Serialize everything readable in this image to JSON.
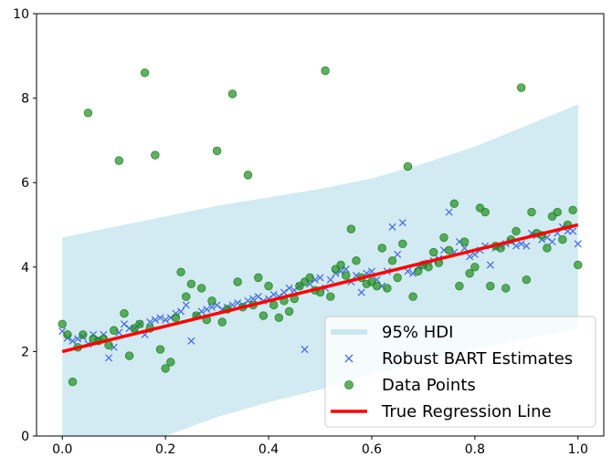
{
  "chart_data": {
    "type": "scatter",
    "xlim": [
      -0.05,
      1.05
    ],
    "ylim": [
      0,
      10
    ],
    "xticks": [
      "0.0",
      "0.2",
      "0.4",
      "0.6",
      "0.8",
      "1.0"
    ],
    "yticks": [
      "0",
      "2",
      "4",
      "6",
      "8",
      "10"
    ],
    "grid": false,
    "legend_position": "lower-right",
    "legend": {
      "hdi": "95% HDI",
      "estimates": "Robust BART Estimates",
      "data": "Data Points",
      "true_line": "True Regression Line"
    },
    "colors": {
      "hdi": "#add8e6",
      "estimates": "#4169e1",
      "data": "#228b22",
      "true_line": "#ff0000"
    },
    "hdi_band": {
      "x": [
        0.0,
        0.1,
        0.2,
        0.3,
        0.4,
        0.5,
        0.6,
        0.7,
        0.8,
        0.9,
        1.0
      ],
      "lower": [
        0.0,
        0.0,
        0.0,
        0.45,
        0.8,
        1.1,
        1.45,
        1.8,
        2.05,
        2.3,
        2.55
      ],
      "upper": [
        4.7,
        4.95,
        5.2,
        5.45,
        5.65,
        5.85,
        6.1,
        6.45,
        6.85,
        7.35,
        7.85
      ]
    },
    "true_line": {
      "x": [
        0.0,
        1.0
      ],
      "y": [
        2.0,
        5.0
      ]
    },
    "estimates": {
      "x": [
        0.0,
        0.01,
        0.02,
        0.03,
        0.04,
        0.05,
        0.06,
        0.07,
        0.08,
        0.09,
        0.1,
        0.11,
        0.12,
        0.13,
        0.14,
        0.15,
        0.16,
        0.17,
        0.18,
        0.19,
        0.2,
        0.21,
        0.22,
        0.23,
        0.24,
        0.25,
        0.26,
        0.27,
        0.28,
        0.29,
        0.3,
        0.31,
        0.32,
        0.33,
        0.34,
        0.35,
        0.36,
        0.37,
        0.38,
        0.39,
        0.4,
        0.41,
        0.42,
        0.43,
        0.44,
        0.45,
        0.46,
        0.47,
        0.48,
        0.49,
        0.5,
        0.51,
        0.52,
        0.53,
        0.54,
        0.55,
        0.56,
        0.57,
        0.58,
        0.59,
        0.6,
        0.61,
        0.62,
        0.63,
        0.64,
        0.65,
        0.66,
        0.67,
        0.68,
        0.69,
        0.7,
        0.71,
        0.72,
        0.73,
        0.74,
        0.75,
        0.76,
        0.77,
        0.78,
        0.79,
        0.8,
        0.81,
        0.82,
        0.83,
        0.84,
        0.85,
        0.86,
        0.87,
        0.88,
        0.89,
        0.9,
        0.91,
        0.92,
        0.93,
        0.94,
        0.95,
        0.96,
        0.97,
        0.98,
        0.99,
        1.0
      ],
      "y": [
        2.48,
        2.32,
        2.25,
        2.3,
        2.35,
        2.18,
        2.4,
        2.3,
        2.4,
        1.85,
        2.1,
        2.45,
        2.65,
        2.55,
        2.55,
        2.65,
        2.4,
        2.7,
        2.75,
        2.8,
        2.75,
        2.8,
        2.9,
        2.95,
        3.1,
        2.25,
        2.85,
        2.95,
        3.0,
        3.05,
        3.1,
        3.0,
        3.05,
        3.1,
        3.15,
        3.1,
        3.2,
        3.25,
        3.3,
        3.2,
        3.25,
        3.35,
        3.3,
        3.4,
        3.5,
        3.45,
        3.55,
        2.05,
        3.6,
        3.7,
        3.75,
        3.5,
        3.7,
        3.85,
        3.9,
        3.95,
        3.65,
        3.8,
        3.4,
        3.85,
        3.9,
        3.7,
        3.55,
        3.9,
        4.95,
        4.3,
        5.05,
        3.9,
        3.85,
        4.0,
        4.05,
        4.1,
        4.15,
        4.2,
        4.4,
        5.3,
        4.35,
        4.6,
        4.45,
        4.25,
        4.3,
        4.4,
        4.5,
        4.05,
        4.45,
        4.5,
        4.55,
        4.6,
        4.5,
        4.55,
        4.5,
        4.8,
        4.75,
        4.65,
        4.7,
        4.6,
        4.8,
        4.95,
        4.85,
        4.85,
        4.55
      ]
    },
    "data_points": {
      "x": [
        0.0,
        0.01,
        0.02,
        0.03,
        0.04,
        0.05,
        0.06,
        0.07,
        0.08,
        0.09,
        0.1,
        0.11,
        0.12,
        0.13,
        0.14,
        0.15,
        0.16,
        0.17,
        0.18,
        0.19,
        0.2,
        0.21,
        0.22,
        0.23,
        0.24,
        0.25,
        0.26,
        0.27,
        0.28,
        0.29,
        0.3,
        0.31,
        0.32,
        0.33,
        0.34,
        0.35,
        0.36,
        0.37,
        0.38,
        0.39,
        0.4,
        0.41,
        0.42,
        0.43,
        0.44,
        0.45,
        0.46,
        0.47,
        0.48,
        0.49,
        0.5,
        0.51,
        0.52,
        0.53,
        0.54,
        0.55,
        0.56,
        0.57,
        0.58,
        0.59,
        0.6,
        0.61,
        0.62,
        0.63,
        0.64,
        0.65,
        0.66,
        0.67,
        0.68,
        0.69,
        0.7,
        0.71,
        0.72,
        0.73,
        0.74,
        0.75,
        0.76,
        0.77,
        0.78,
        0.79,
        0.8,
        0.81,
        0.82,
        0.83,
        0.84,
        0.85,
        0.86,
        0.87,
        0.88,
        0.89,
        0.9,
        0.91,
        0.92,
        0.93,
        0.94,
        0.95,
        0.96,
        0.97,
        0.98,
        0.99,
        1.0
      ],
      "y": [
        2.65,
        2.4,
        1.28,
        2.1,
        2.4,
        7.65,
        2.3,
        2.25,
        2.3,
        2.15,
        2.5,
        6.52,
        2.9,
        1.9,
        2.55,
        2.65,
        8.6,
        2.55,
        6.65,
        2.05,
        1.6,
        1.75,
        2.8,
        3.88,
        3.3,
        3.6,
        2.85,
        3.5,
        2.75,
        3.2,
        6.75,
        2.7,
        3.0,
        8.1,
        3.65,
        3.05,
        6.18,
        3.1,
        3.75,
        2.85,
        3.55,
        3.1,
        2.8,
        3.2,
        2.95,
        3.25,
        3.55,
        3.65,
        3.75,
        3.45,
        3.4,
        8.65,
        3.3,
        3.95,
        4.05,
        3.8,
        4.9,
        4.15,
        3.75,
        3.6,
        3.65,
        3.55,
        4.45,
        3.5,
        4.15,
        3.75,
        4.55,
        6.38,
        3.3,
        3.9,
        4.05,
        4.0,
        4.35,
        4.1,
        4.7,
        4.4,
        5.5,
        3.55,
        4.6,
        3.85,
        4.0,
        5.4,
        5.3,
        3.55,
        4.5,
        4.45,
        3.5,
        4.65,
        4.85,
        8.25,
        3.7,
        5.3,
        4.8,
        4.75,
        4.45,
        5.2,
        5.3,
        4.65,
        5.0,
        5.35,
        4.05
      ]
    }
  }
}
